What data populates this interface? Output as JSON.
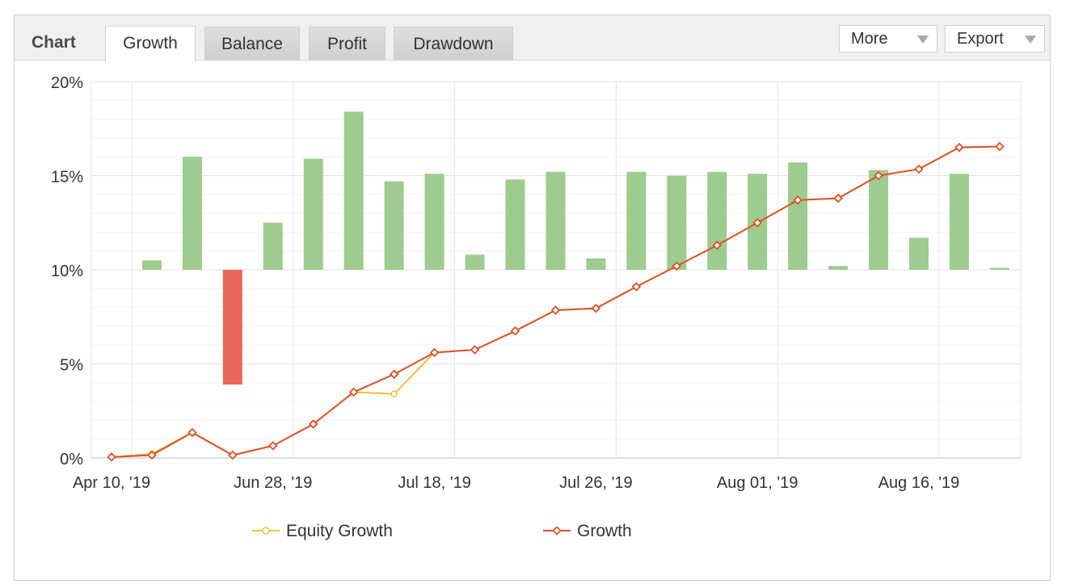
{
  "header": {
    "chart_label": "Chart",
    "tabs": [
      {
        "label": "Growth",
        "active": true
      },
      {
        "label": "Balance",
        "active": false
      },
      {
        "label": "Profit",
        "active": false
      },
      {
        "label": "Drawdown",
        "active": false
      }
    ],
    "more_label": "More",
    "export_label": "Export"
  },
  "chart_data": {
    "type": "line",
    "y_tick_labels": [
      "0%",
      "5%",
      "10%",
      "15%",
      "20%"
    ],
    "ylim": [
      0,
      20
    ],
    "x_tick_labels": [
      "Apr 10, '19",
      "Jun 28, '19",
      "Jul 18, '19",
      "Jul 26, '19",
      "Aug 01, '19",
      "Aug 16, '19"
    ],
    "grid": true,
    "legend_position": "bottom",
    "series": [
      {
        "name": "Equity Growth",
        "color": "#f0c040",
        "values": [
          0.05,
          0.22,
          1.35,
          0.15,
          0.65,
          1.8,
          3.5,
          3.4,
          5.6,
          5.75,
          6.75,
          7.85,
          7.95,
          9.1,
          10.2,
          11.3,
          12.5,
          13.7,
          13.8,
          15.0,
          15.35,
          16.5,
          16.55
        ]
      },
      {
        "name": "Growth",
        "color": "#d9532c",
        "values": [
          0.05,
          0.15,
          1.35,
          0.15,
          0.65,
          1.8,
          3.5,
          4.45,
          5.6,
          5.75,
          6.75,
          7.85,
          7.95,
          9.1,
          10.2,
          11.3,
          12.5,
          13.7,
          13.8,
          15.0,
          15.35,
          16.5,
          16.55
        ]
      }
    ],
    "bars": {
      "baseline": 10,
      "positive_color": "#9ecb8f",
      "negative_color": "#e8695b",
      "values": [
        10.5,
        16.0,
        3.9,
        12.5,
        15.9,
        18.4,
        14.7,
        15.1,
        10.8,
        14.8,
        15.2,
        10.6,
        15.2,
        15.0,
        15.2,
        15.1,
        15.7,
        10.2,
        15.3,
        11.7,
        15.1,
        10.1
      ]
    }
  }
}
